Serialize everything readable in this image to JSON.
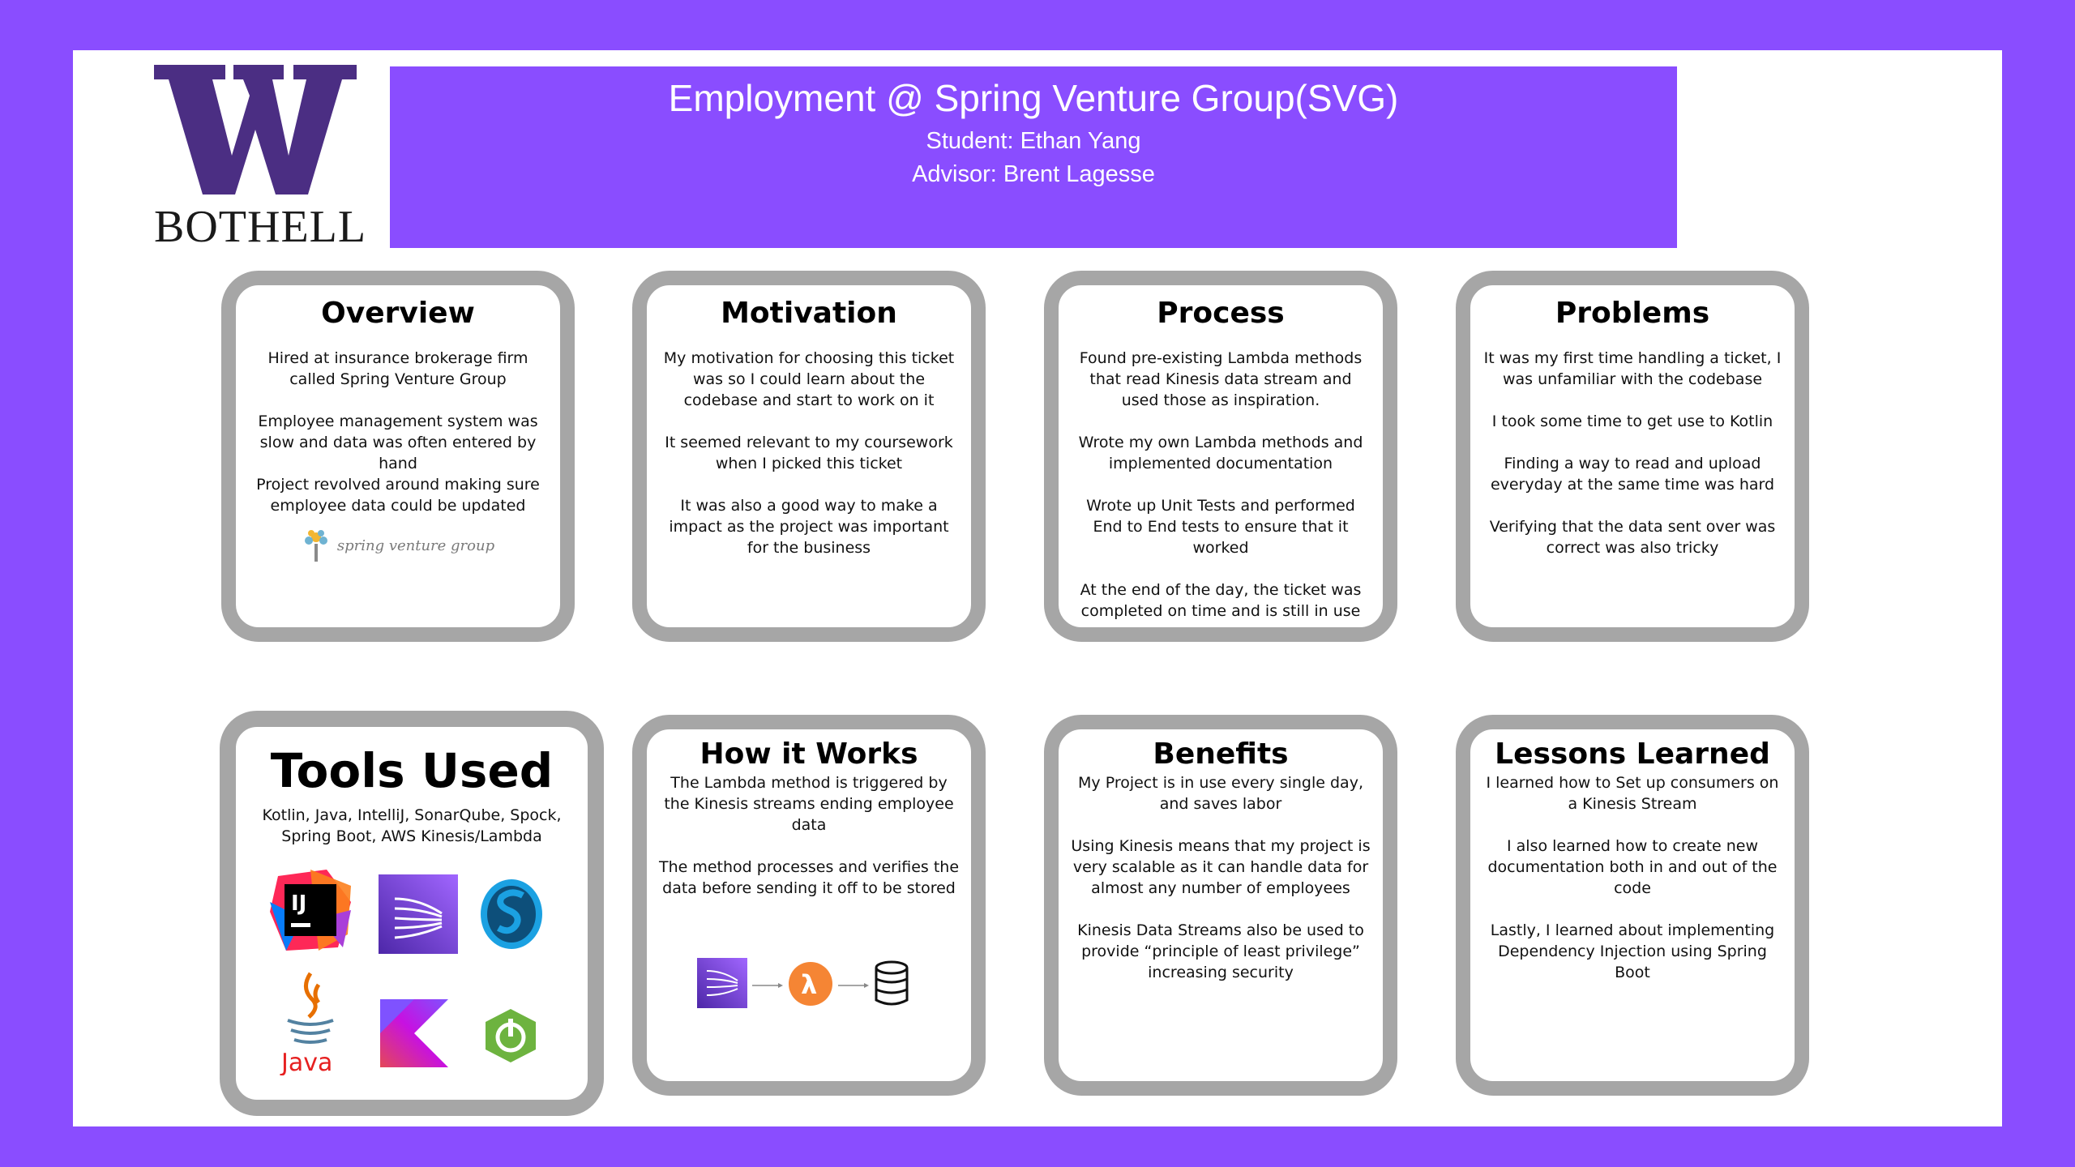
{
  "header": {
    "logo_text": "BOTHELL",
    "title": "Employment @ Spring Venture Group(SVG)",
    "student": "Student: Ethan Yang",
    "advisor": "Advisor: Brent Lagesse"
  },
  "colors": {
    "background": "#8a4dff",
    "banner": "#8a4dff",
    "card_border": "#a6a6a6",
    "uw_purple": "#4b2e83"
  },
  "overview": {
    "title": "Overview",
    "paragraphs": [
      "Hired at insurance brokerage firm called Spring Venture Group",
      "Employee management system was slow and data was often entered by hand",
      "Project revolved around making sure employee data could be updated"
    ],
    "company_logo": "spring venture group"
  },
  "motivation": {
    "title": "Motivation",
    "paragraphs": [
      "My motivation for choosing this ticket was so I could learn about the codebase and start to work on it",
      "It seemed relevant to my coursework when I picked this ticket",
      "It was also a good way to make a impact as the project was important for the business"
    ]
  },
  "process": {
    "title": "Process",
    "paragraphs": [
      "Found pre-existing Lambda methods that read Kinesis data stream and used those as inspiration.",
      "Wrote my own Lambda methods and implemented documentation",
      "Wrote up Unit Tests and performed End to End tests to ensure that it worked",
      "At the end of the day, the ticket was completed on time and is still in use"
    ]
  },
  "problems": {
    "title": "Problems",
    "paragraphs": [
      "It was my first time handling a ticket, I was unfamiliar with the codebase",
      "I took some time to get use to Kotlin",
      "Finding a way to read and upload everyday at the same time was hard",
      "Verifying that the data sent over was correct was also tricky"
    ]
  },
  "tools": {
    "title": "Tools Used",
    "description": "Kotlin, Java, IntelliJ, SonarQube, Spock, Spring Boot, AWS Kinesis/Lambda",
    "icons": [
      "intellij-icon",
      "kinesis-icon",
      "spock-icon",
      "java-icon",
      "kotlin-icon",
      "spring-boot-icon"
    ],
    "intellij_label": "IJ",
    "java_label": "Java"
  },
  "how_it_works": {
    "title": "How it Works",
    "paragraphs": [
      "The Lambda method is triggered by the Kinesis streams ending employee data",
      "The method processes and verifies the data before sending it off to be stored"
    ],
    "flow_icons": [
      "kinesis-icon",
      "lambda-icon",
      "database-icon"
    ]
  },
  "benefits": {
    "title": "Benefits",
    "paragraphs": [
      "My Project is in use every single day, and saves labor",
      "Using Kinesis means that my project is very scalable as it can handle data for almost any number of employees",
      "Kinesis Data Streams also be used to provide “principle of least privilege” increasing security"
    ]
  },
  "lessons": {
    "title": "Lessons Learned",
    "paragraphs": [
      "I learned how to Set up consumers on a Kinesis Stream",
      "I also learned how to create new documentation both in and out of the code",
      "Lastly, I learned about implementing Dependency Injection using Spring Boot"
    ]
  }
}
